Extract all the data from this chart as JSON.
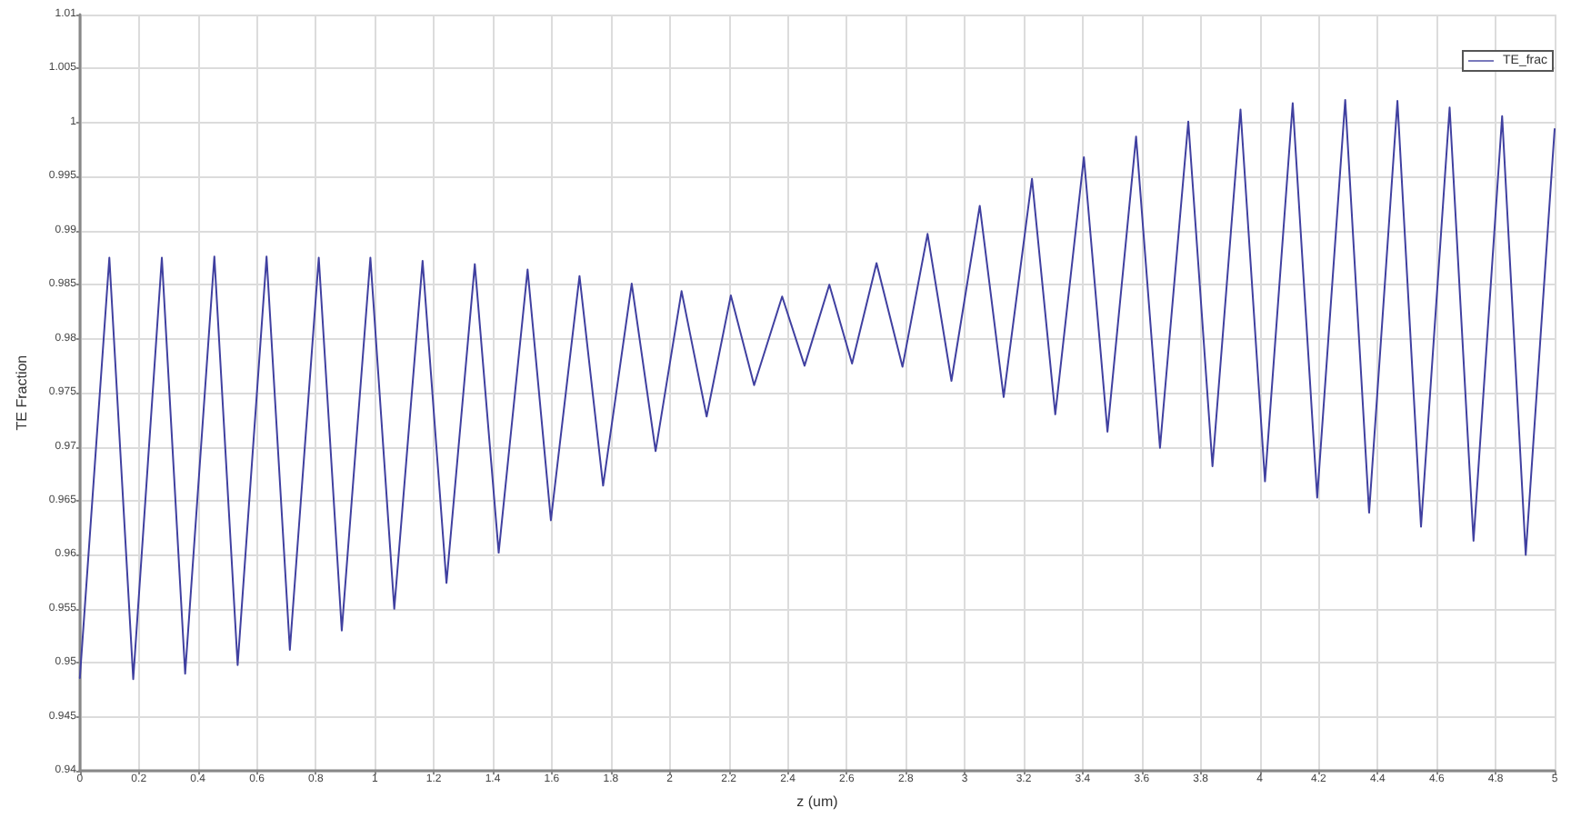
{
  "chart_data": {
    "type": "line",
    "xlabel": "z (um)",
    "ylabel": "TE Fraction",
    "x": [
      0,
      0.1,
      0.181,
      0.278,
      0.357,
      0.456,
      0.535,
      0.633,
      0.712,
      0.81,
      0.888,
      0.985,
      1.066,
      1.162,
      1.243,
      1.339,
      1.42,
      1.518,
      1.597,
      1.694,
      1.774,
      1.871,
      1.952,
      2.04,
      2.125,
      2.207,
      2.286,
      2.381,
      2.457,
      2.541,
      2.618,
      2.701,
      2.789,
      2.874,
      2.955,
      3.051,
      3.132,
      3.228,
      3.307,
      3.404,
      3.484,
      3.581,
      3.662,
      3.758,
      3.84,
      3.935,
      4.018,
      4.112,
      4.195,
      4.29,
      4.371,
      4.467,
      4.547,
      4.644,
      4.725,
      4.822,
      4.902,
      5
    ],
    "series": [
      {
        "name": "TE_frac",
        "color": "#4040a0",
        "values": [
          0.9486,
          0.9875,
          0.9485,
          0.9875,
          0.949,
          0.9876,
          0.9498,
          0.9876,
          0.9512,
          0.9875,
          0.953,
          0.9875,
          0.955,
          0.9872,
          0.9574,
          0.9869,
          0.9602,
          0.9864,
          0.9632,
          0.9858,
          0.9664,
          0.9851,
          0.9696,
          0.9844,
          0.9728,
          0.984,
          0.9757,
          0.9839,
          0.9775,
          0.985,
          0.9777,
          0.987,
          0.9774,
          0.9897,
          0.9761,
          0.9923,
          0.9746,
          0.9948,
          0.973,
          0.9968,
          0.9714,
          0.9987,
          0.9699,
          1.0001,
          0.9682,
          1.0012,
          0.9668,
          1.0018,
          0.9653,
          1.0021,
          0.9639,
          1.002,
          0.9626,
          1.0014,
          0.9613,
          1.0006,
          0.96,
          0.9994
        ]
      }
    ],
    "xlim": [
      0,
      5
    ],
    "xticks": [
      0,
      0.2,
      0.4,
      0.6,
      0.8,
      1,
      1.2,
      1.4,
      1.6,
      1.8,
      2,
      2.2,
      2.4,
      2.6,
      2.8,
      3,
      3.2,
      3.4,
      3.6,
      3.8,
      4,
      4.2,
      4.4,
      4.6,
      4.8,
      5
    ],
    "ylim": [
      0.94,
      1.01
    ],
    "yticks": [
      0.94,
      0.945,
      0.95,
      0.955,
      0.96,
      0.965,
      0.97,
      0.975,
      0.98,
      0.985,
      0.99,
      0.995,
      1,
      1.005,
      1.01
    ],
    "grid": true,
    "legend": "top right",
    "marker": "none",
    "line_style": "solid"
  }
}
